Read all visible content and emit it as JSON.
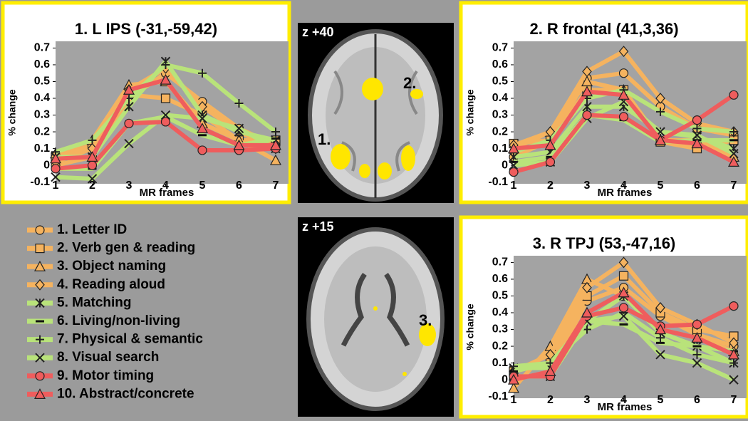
{
  "chart_data": [
    {
      "type": "line",
      "title": "1. L IPS (-31,-59,42)",
      "x_label": "MR frames",
      "y_label": "% change",
      "x": [
        1,
        2,
        3,
        4,
        5,
        6,
        7
      ],
      "xlim": [
        1,
        7.35
      ],
      "xticks": [
        1,
        2,
        3,
        4,
        5,
        6,
        7
      ],
      "ylim": [
        -0.11,
        0.74
      ],
      "yticks": [
        -0.1,
        0,
        0.1,
        0.2,
        0.3,
        0.4,
        0.5,
        0.6,
        0.7
      ],
      "series": [
        {
          "name": "1. Letter ID",
          "color": "#f5b35f",
          "marker": "circle",
          "values": [
            0,
            0.05,
            0.4,
            0.55,
            0.38,
            0.22,
            0.12
          ]
        },
        {
          "name": "2. Verb gen & reading",
          "color": "#f5b35f",
          "marker": "square",
          "values": [
            0.05,
            0.12,
            0.42,
            0.4,
            0.3,
            0.15,
            0.15
          ]
        },
        {
          "name": "3. Object naming",
          "color": "#f5b35f",
          "marker": "triangle",
          "values": [
            0.07,
            0.15,
            0.48,
            0.5,
            0.25,
            0.15,
            0.03
          ]
        },
        {
          "name": "4. Reading aloud",
          "color": "#f5b35f",
          "marker": "diamond",
          "values": [
            0.02,
            0.1,
            0.45,
            0.58,
            0.35,
            0.2,
            0.1
          ]
        },
        {
          "name": "5. Matching",
          "color": "#b9e37a",
          "marker": "asterisk",
          "values": [
            0.05,
            0.05,
            0.35,
            0.62,
            0.3,
            0.2,
            0.15
          ]
        },
        {
          "name": "6. Living/non-living",
          "color": "#b9e37a",
          "marker": "dash",
          "values": [
            -0.02,
            -0.02,
            0.25,
            0.29,
            0.18,
            0.12,
            0.16
          ]
        },
        {
          "name": "7. Physical & semantic",
          "color": "#b9e37a",
          "marker": "plus",
          "values": [
            0.08,
            0.15,
            0.4,
            0.6,
            0.55,
            0.37,
            0.2
          ]
        },
        {
          "name": "8. Visual search",
          "color": "#b9e37a",
          "marker": "cross",
          "values": [
            -0.07,
            -0.08,
            0.13,
            0.3,
            0.28,
            0.22,
            0.1
          ]
        },
        {
          "name": "9. Motor timing",
          "color": "#ef5d5d",
          "marker": "circle",
          "values": [
            -0.02,
            0,
            0.25,
            0.26,
            0.09,
            0.09,
            0.1
          ]
        },
        {
          "name": "10. Abstract/concrete",
          "color": "#ef5d5d",
          "marker": "triangle",
          "values": [
            0.04,
            0.05,
            0.45,
            0.51,
            0.22,
            0.12,
            0.12
          ]
        }
      ]
    },
    {
      "type": "line",
      "title": "2. R frontal (41,3,36)",
      "x_label": "MR frames",
      "y_label": "% change",
      "x": [
        1,
        2,
        3,
        4,
        5,
        6,
        7
      ],
      "xlim": [
        1,
        7.35
      ],
      "xticks": [
        1,
        2,
        3,
        4,
        5,
        6,
        7
      ],
      "ylim": [
        -0.11,
        0.74
      ],
      "yticks": [
        -0.1,
        0,
        0.1,
        0.2,
        0.3,
        0.4,
        0.5,
        0.6,
        0.7
      ],
      "series": [
        {
          "name": "1. Letter ID",
          "color": "#f5b35f",
          "marker": "circle",
          "values": [
            0.05,
            0.15,
            0.52,
            0.55,
            0.35,
            0.22,
            0.18
          ]
        },
        {
          "name": "2. Verb gen & reading",
          "color": "#f5b35f",
          "marker": "square",
          "values": [
            0.13,
            0.15,
            0.45,
            0.45,
            0.14,
            0.1,
            0.15
          ]
        },
        {
          "name": "3. Object naming",
          "color": "#f5b35f",
          "marker": "triangle",
          "values": [
            0.1,
            0.2,
            0.5,
            0.45,
            0.15,
            0.15,
            0.05
          ]
        },
        {
          "name": "4. Reading aloud",
          "color": "#f5b35f",
          "marker": "diamond",
          "values": [
            0.12,
            0.2,
            0.56,
            0.68,
            0.4,
            0.25,
            0.2
          ]
        },
        {
          "name": "5. Matching",
          "color": "#b9e37a",
          "marker": "asterisk",
          "values": [
            0.05,
            0.08,
            0.35,
            0.35,
            0.2,
            0.17,
            0.1
          ]
        },
        {
          "name": "6. Living/non-living",
          "color": "#b9e37a",
          "marker": "dash",
          "values": [
            0.02,
            0.05,
            0.3,
            0.27,
            0.14,
            0.15,
            0.15
          ]
        },
        {
          "name": "7. Physical & semantic",
          "color": "#b9e37a",
          "marker": "plus",
          "values": [
            0.08,
            0.15,
            0.4,
            0.45,
            0.32,
            0.22,
            0.2
          ]
        },
        {
          "name": "8. Visual search",
          "color": "#b9e37a",
          "marker": "cross",
          "values": [
            0,
            0.02,
            0.28,
            0.38,
            0.2,
            0.18,
            0.07
          ]
        },
        {
          "name": "9. Motor timing",
          "color": "#ef5d5d",
          "marker": "circle",
          "values": [
            -0.04,
            0.02,
            0.3,
            0.29,
            0.15,
            0.27,
            0.42
          ]
        },
        {
          "name": "10. Abstract/concrete",
          "color": "#ef5d5d",
          "marker": "triangle",
          "values": [
            0.1,
            0.12,
            0.44,
            0.42,
            0.15,
            0.13,
            0.02
          ]
        }
      ]
    },
    {
      "type": "line",
      "title": "3. R TPJ (53,-47,16)",
      "x_label": "MR frames",
      "y_label": "% change",
      "x": [
        1,
        2,
        3,
        4,
        5,
        6,
        7
      ],
      "xlim": [
        1,
        7.35
      ],
      "xticks": [
        1,
        2,
        3,
        4,
        5,
        6,
        7
      ],
      "ylim": [
        -0.11,
        0.74
      ],
      "yticks": [
        -0.1,
        0,
        0.1,
        0.2,
        0.3,
        0.4,
        0.5,
        0.6,
        0.7
      ],
      "series": [
        {
          "name": "1. Letter ID",
          "color": "#f5b35f",
          "marker": "circle",
          "values": [
            0,
            0.05,
            0.47,
            0.55,
            0.38,
            0.27,
            0.2
          ]
        },
        {
          "name": "2. Verb gen & reading",
          "color": "#f5b35f",
          "marker": "square",
          "values": [
            0.05,
            0.1,
            0.5,
            0.62,
            0.4,
            0.3,
            0.26
          ]
        },
        {
          "name": "3. Object naming",
          "color": "#f5b35f",
          "marker": "triangle",
          "values": [
            -0.05,
            0.2,
            0.6,
            0.5,
            0.3,
            0.25,
            0.17
          ]
        },
        {
          "name": "4. Reading aloud",
          "color": "#f5b35f",
          "marker": "diamond",
          "values": [
            0.05,
            0.15,
            0.55,
            0.7,
            0.43,
            0.33,
            0.22
          ]
        },
        {
          "name": "5. Matching",
          "color": "#b9e37a",
          "marker": "asterisk",
          "values": [
            0.07,
            0.07,
            0.35,
            0.5,
            0.28,
            0.2,
            0.1
          ]
        },
        {
          "name": "6. Living/non-living",
          "color": "#b9e37a",
          "marker": "dash",
          "values": [
            0.05,
            0.1,
            0.35,
            0.33,
            0.22,
            0.2,
            0.17
          ]
        },
        {
          "name": "7. Physical & semantic",
          "color": "#b9e37a",
          "marker": "plus",
          "values": [
            0.08,
            0.1,
            0.3,
            0.4,
            0.25,
            0.15,
            0.1
          ]
        },
        {
          "name": "8. Visual search",
          "color": "#b9e37a",
          "marker": "cross",
          "values": [
            0.02,
            0.02,
            0.35,
            0.38,
            0.15,
            0.1,
            0
          ]
        },
        {
          "name": "9. Motor timing",
          "color": "#ef5d5d",
          "marker": "circle",
          "values": [
            0.02,
            0.02,
            0.38,
            0.43,
            0.32,
            0.33,
            0.44
          ]
        },
        {
          "name": "10. Abstract/concrete",
          "color": "#ef5d5d",
          "marker": "triangle",
          "values": [
            0,
            0.05,
            0.4,
            0.52,
            0.3,
            0.25,
            0.15
          ]
        }
      ]
    }
  ],
  "slices": [
    {
      "label": "z +40",
      "regions": [
        "1.",
        "2."
      ]
    },
    {
      "label": "z +15",
      "regions": [
        "3."
      ]
    }
  ]
}
